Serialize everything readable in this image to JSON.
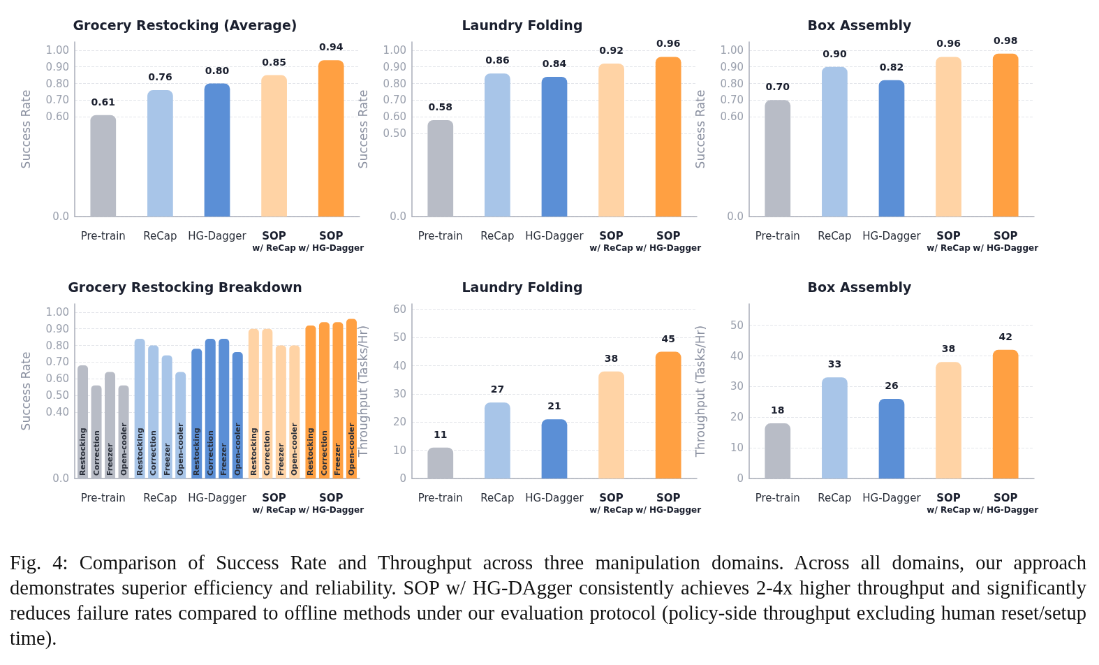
{
  "chart_data": [
    {
      "type": "bar",
      "title": "Grocery Restocking (Average)",
      "ylabel": "Success Rate",
      "categories": [
        "Pre-train",
        "ReCap",
        "HG-Dagger",
        "SOP\nw/ ReCap",
        "SOP\nw/ HG-Dagger"
      ],
      "values": [
        0.61,
        0.76,
        0.8,
        0.85,
        0.94
      ],
      "value_labels": [
        "0.61",
        "0.76",
        "0.80",
        "0.85",
        "0.94"
      ],
      "colors": [
        "#b8bcc6",
        "#a8c5e8",
        "#5b8fd6",
        "#ffd3a5",
        "#ffa042"
      ],
      "ylim": [
        0,
        1.05
      ],
      "yticks": [
        {
          "value": 0,
          "label": "0.0"
        },
        {
          "value": 0.6,
          "label": "0.60"
        },
        {
          "value": 0.7,
          "label": "0.70"
        },
        {
          "value": 0.8,
          "label": "0.80"
        },
        {
          "value": 0.9,
          "label": "0.90"
        },
        {
          "value": 1.0,
          "label": "1.00"
        }
      ],
      "grid": "y"
    },
    {
      "type": "bar",
      "title": "Laundry Folding",
      "ylabel": "Success Rate",
      "categories": [
        "Pre-train",
        "ReCap",
        "HG-Dagger",
        "SOP\nw/ ReCap",
        "SOP\nw/ HG-Dagger"
      ],
      "values": [
        0.58,
        0.86,
        0.84,
        0.92,
        0.96
      ],
      "value_labels": [
        "0.58",
        "0.86",
        "0.84",
        "0.92",
        "0.96"
      ],
      "colors": [
        "#b8bcc6",
        "#a8c5e8",
        "#5b8fd6",
        "#ffd3a5",
        "#ffa042"
      ],
      "ylim": [
        0,
        1.05
      ],
      "yticks": [
        {
          "value": 0,
          "label": "0.0"
        },
        {
          "value": 0.5,
          "label": "0.50"
        },
        {
          "value": 0.6,
          "label": "0.60"
        },
        {
          "value": 0.7,
          "label": "0.70"
        },
        {
          "value": 0.8,
          "label": "0.80"
        },
        {
          "value": 0.9,
          "label": "0.90"
        },
        {
          "value": 1.0,
          "label": "1.00"
        }
      ],
      "grid": "y"
    },
    {
      "type": "bar",
      "title": "Box Assembly",
      "ylabel": "Success Rate",
      "categories": [
        "Pre-train",
        "ReCap",
        "HG-Dagger",
        "SOP\nw/ ReCap",
        "SOP\nw/ HG-Dagger"
      ],
      "values": [
        0.7,
        0.9,
        0.82,
        0.96,
        0.98
      ],
      "value_labels": [
        "0.70",
        "0.90",
        "0.82",
        "0.96",
        "0.98"
      ],
      "colors": [
        "#b8bcc6",
        "#a8c5e8",
        "#5b8fd6",
        "#ffd3a5",
        "#ffa042"
      ],
      "ylim": [
        0,
        1.05
      ],
      "yticks": [
        {
          "value": 0,
          "label": "0.0"
        },
        {
          "value": 0.6,
          "label": "0.60"
        },
        {
          "value": 0.7,
          "label": "0.70"
        },
        {
          "value": 0.8,
          "label": "0.80"
        },
        {
          "value": 0.9,
          "label": "0.90"
        },
        {
          "value": 1.0,
          "label": "1.00"
        }
      ],
      "grid": "y"
    },
    {
      "type": "bar",
      "title": "Grocery Restocking Breakdown",
      "ylabel": "Success Rate",
      "categories": [
        "Pre-train",
        "ReCap",
        "HG-Dagger",
        "SOP\nw/ ReCap",
        "SOP\nw/ HG-Dagger"
      ],
      "series": [
        {
          "name": "Restocking",
          "colors": [
            "#b8bcc6",
            "#a8c5e8",
            "#5b8fd6",
            "#ffd3a5",
            "#ffa042"
          ],
          "values": [
            0.68,
            0.84,
            0.78,
            0.9,
            0.92
          ]
        },
        {
          "name": "Correction",
          "colors": [
            "#b8bcc6",
            "#a8c5e8",
            "#5b8fd6",
            "#ffd3a5",
            "#ffa042"
          ],
          "values": [
            0.56,
            0.8,
            0.84,
            0.9,
            0.94
          ]
        },
        {
          "name": "Freezer",
          "colors": [
            "#b8bcc6",
            "#a8c5e8",
            "#5b8fd6",
            "#ffd3a5",
            "#ffa042"
          ],
          "values": [
            0.64,
            0.74,
            0.84,
            0.8,
            0.94
          ]
        },
        {
          "name": "Open-cooler",
          "colors": [
            "#b8bcc6",
            "#a8c5e8",
            "#5b8fd6",
            "#ffd3a5",
            "#ffa042"
          ],
          "values": [
            0.56,
            0.64,
            0.76,
            0.8,
            0.96
          ]
        }
      ],
      "ylim": [
        0,
        1.05
      ],
      "yticks": [
        {
          "value": 0,
          "label": "0.0"
        },
        {
          "value": 0.4,
          "label": "0.40"
        },
        {
          "value": 0.5,
          "label": "0.50"
        },
        {
          "value": 0.6,
          "label": "0.60"
        },
        {
          "value": 0.7,
          "label": "0.70"
        },
        {
          "value": 0.8,
          "label": "0.80"
        },
        {
          "value": 0.9,
          "label": "0.90"
        },
        {
          "value": 1.0,
          "label": "1.00"
        }
      ],
      "grid": "y"
    },
    {
      "type": "bar",
      "title": "Laundry Folding",
      "ylabel": "Throughput (Tasks/Hr)",
      "categories": [
        "Pre-train",
        "ReCap",
        "HG-Dagger",
        "SOP\nw/ ReCap",
        "SOP\nw/ HG-Dagger"
      ],
      "values": [
        11,
        27,
        21,
        38,
        45
      ],
      "data_labels": true,
      "colors": [
        "#b8bcc6",
        "#a8c5e8",
        "#5b8fd6",
        "#ffd3a5",
        "#ffa042"
      ],
      "ylim": [
        0,
        62
      ],
      "yticks": [
        0,
        10,
        20,
        30,
        40,
        50,
        60
      ],
      "grid": "y"
    },
    {
      "type": "bar",
      "title": "Box Assembly",
      "ylabel": "Throughput (Tasks/Hr)",
      "categories": [
        "Pre-train",
        "ReCap",
        "HG-Dagger",
        "SOP\nw/ ReCap",
        "SOP\nw/ HG-Dagger"
      ],
      "values": [
        18,
        33,
        26,
        38,
        42
      ],
      "data_labels": true,
      "colors": [
        "#b8bcc6",
        "#a8c5e8",
        "#5b8fd6",
        "#ffd3a5",
        "#ffa042"
      ],
      "ylim": [
        0,
        57
      ],
      "yticks": [
        0,
        10,
        20,
        30,
        40,
        50
      ],
      "grid": "y"
    },
    {
      "type": "other",
      "annotations": [
        "Fig. 4: Comparison of Success Rate and Throughput across three manipulation domains. Across all domains, our approach demonstrates superior efficiency and reliability. SOP w/ HG-DAgger consistently achieves 2-4x higher throughput and significantly reduces failure rates compared to offline methods under our evaluation protocol (policy-side throughput excluding human reset/setup time)."
      ]
    }
  ]
}
